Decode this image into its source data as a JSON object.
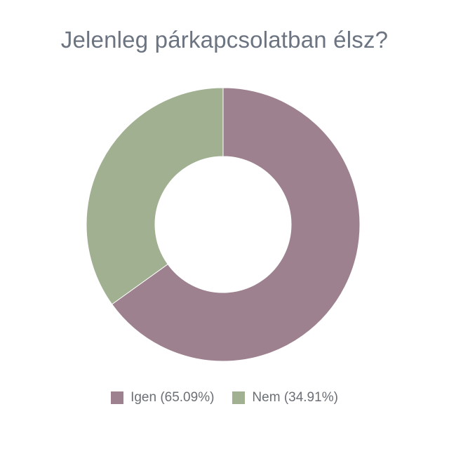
{
  "chart_data": {
    "type": "pie",
    "title": "Jelenleg párkapcsolatban élsz?",
    "categories": [
      "Igen",
      "Nem"
    ],
    "values": [
      65.09,
      34.91
    ],
    "legend_labels": [
      "Igen (65.09%)",
      "Nem (34.91%)"
    ],
    "colors": [
      "#9e818f",
      "#a0b090"
    ],
    "donut": true,
    "legend_position": "bottom"
  }
}
